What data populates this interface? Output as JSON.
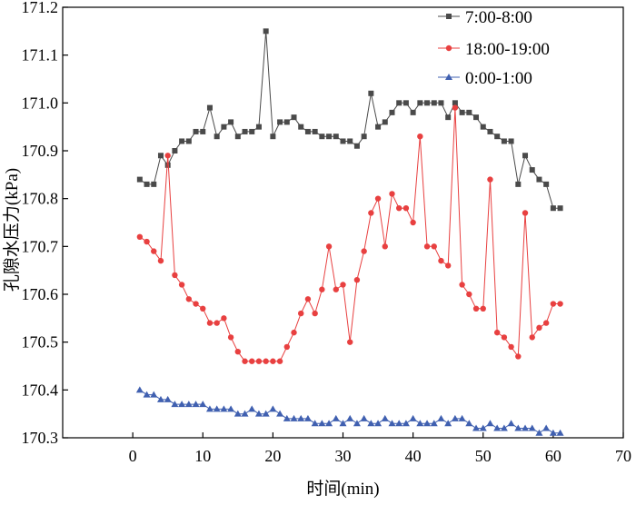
{
  "chart_data": {
    "type": "line",
    "xlabel": "时间(min)",
    "ylabel": "孔隙水压力(kPa)",
    "xlim": [
      -10,
      70
    ],
    "ylim": [
      170.3,
      171.2
    ],
    "xticks": [
      0,
      10,
      20,
      30,
      40,
      50,
      60,
      70
    ],
    "yticks": [
      170.3,
      170.4,
      170.5,
      170.6,
      170.7,
      170.8,
      170.9,
      171.0,
      171.1,
      171.2
    ],
    "ytick_labels": [
      "170.3",
      "170.4",
      "170.5",
      "170.6",
      "170.7",
      "170.8",
      "170.9",
      "171.0",
      "171.1",
      "171.2"
    ],
    "legend_position": "top-right",
    "grid": false,
    "x": [
      1,
      2,
      3,
      4,
      5,
      6,
      7,
      8,
      9,
      10,
      11,
      12,
      13,
      14,
      15,
      16,
      17,
      18,
      19,
      20,
      21,
      22,
      23,
      24,
      25,
      26,
      27,
      28,
      29,
      30,
      31,
      32,
      33,
      34,
      35,
      36,
      37,
      38,
      39,
      40,
      41,
      42,
      43,
      44,
      45,
      46,
      47,
      48,
      49,
      50,
      51,
      52,
      53,
      54,
      55,
      56,
      57,
      58,
      59,
      60,
      61
    ],
    "series": [
      {
        "name": "7:00-8:00",
        "color": "#4a4a4a",
        "marker": "square",
        "values": [
          170.84,
          170.83,
          170.83,
          170.89,
          170.87,
          170.9,
          170.92,
          170.92,
          170.94,
          170.94,
          170.99,
          170.93,
          170.95,
          170.96,
          170.93,
          170.94,
          170.94,
          170.95,
          171.15,
          170.93,
          170.96,
          170.96,
          170.97,
          170.95,
          170.94,
          170.94,
          170.93,
          170.93,
          170.93,
          170.92,
          170.92,
          170.91,
          170.93,
          171.02,
          170.95,
          170.96,
          170.98,
          171.0,
          171.0,
          170.98,
          171.0,
          171.0,
          171.0,
          171.0,
          170.97,
          171.0,
          170.98,
          170.98,
          170.97,
          170.95,
          170.94,
          170.93,
          170.92,
          170.92,
          170.83,
          170.89,
          170.86,
          170.84,
          170.83,
          170.78,
          170.78
        ]
      },
      {
        "name": "18:00-19:00",
        "color": "#e84040",
        "marker": "circle",
        "values": [
          170.72,
          170.71,
          170.69,
          170.67,
          170.89,
          170.64,
          170.62,
          170.59,
          170.58,
          170.57,
          170.54,
          170.54,
          170.55,
          170.51,
          170.48,
          170.46,
          170.46,
          170.46,
          170.46,
          170.46,
          170.46,
          170.49,
          170.52,
          170.56,
          170.59,
          170.56,
          170.61,
          170.7,
          170.61,
          170.62,
          170.5,
          170.63,
          170.69,
          170.77,
          170.8,
          170.7,
          170.81,
          170.78,
          170.78,
          170.75,
          170.93,
          170.7,
          170.7,
          170.67,
          170.66,
          170.99,
          170.62,
          170.6,
          170.57,
          170.57,
          170.84,
          170.52,
          170.51,
          170.49,
          170.47,
          170.77,
          170.51,
          170.53,
          170.54,
          170.58,
          170.58
        ]
      },
      {
        "name": "0:00-1:00",
        "color": "#4060b0",
        "marker": "triangle",
        "values": [
          170.4,
          170.39,
          170.39,
          170.38,
          170.38,
          170.37,
          170.37,
          170.37,
          170.37,
          170.37,
          170.36,
          170.36,
          170.36,
          170.36,
          170.35,
          170.35,
          170.36,
          170.35,
          170.35,
          170.36,
          170.35,
          170.34,
          170.34,
          170.34,
          170.34,
          170.33,
          170.33,
          170.33,
          170.34,
          170.33,
          170.34,
          170.33,
          170.34,
          170.33,
          170.33,
          170.34,
          170.33,
          170.33,
          170.33,
          170.34,
          170.33,
          170.33,
          170.33,
          170.34,
          170.33,
          170.34,
          170.34,
          170.33,
          170.32,
          170.32,
          170.33,
          170.32,
          170.32,
          170.33,
          170.32,
          170.32,
          170.32,
          170.31,
          170.32,
          170.31,
          170.31
        ]
      }
    ]
  }
}
